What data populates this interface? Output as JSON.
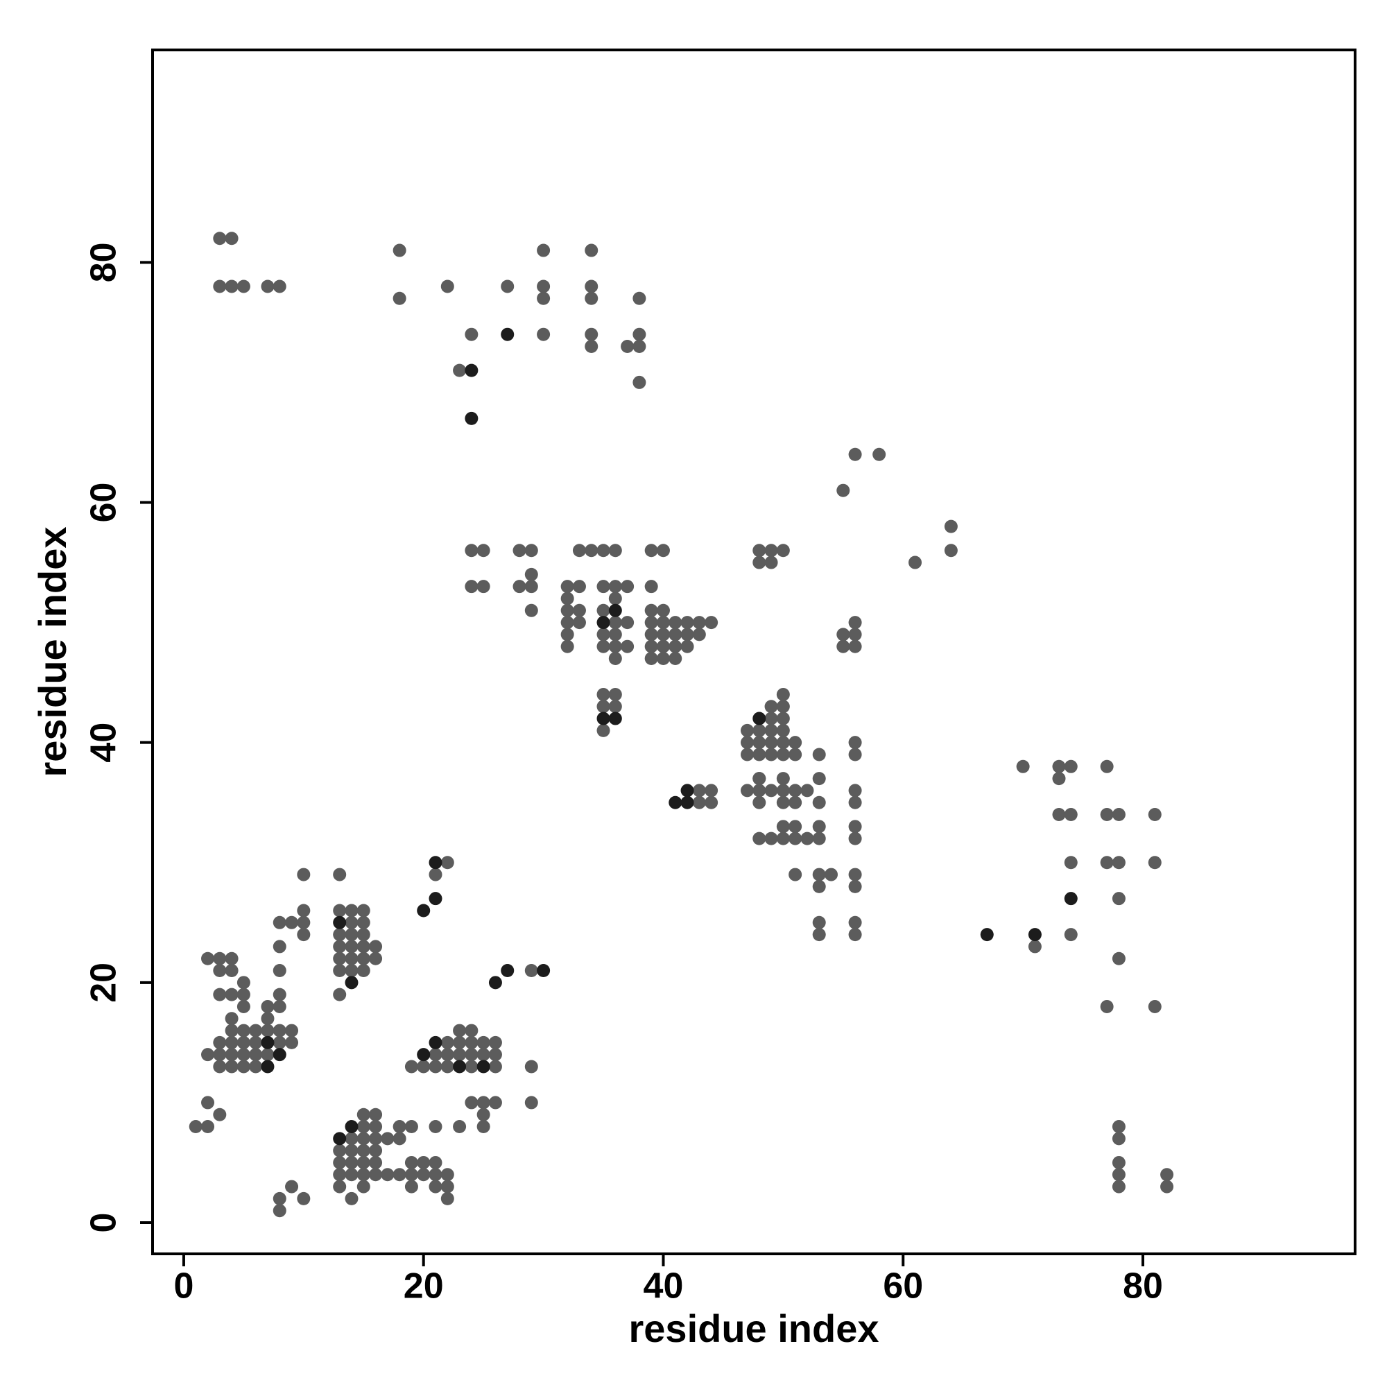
{
  "chart_data": {
    "type": "scatter",
    "xlabel": "residue index",
    "ylabel": "residue index",
    "xlim": [
      -2.6,
      97.7
    ],
    "ylim": [
      -2.6,
      97.7
    ],
    "xticks": [
      0,
      20,
      40,
      60,
      80
    ],
    "yticks": [
      0,
      20,
      40,
      60,
      80
    ],
    "grid": false,
    "series": [
      {
        "color": "#5c5c5c",
        "x": [
          3,
          4,
          3,
          4,
          5,
          7,
          8,
          18,
          18,
          22,
          30,
          30,
          30,
          30,
          34,
          34,
          34,
          34,
          34,
          27,
          24,
          23,
          37,
          38,
          38,
          38,
          38,
          55,
          56,
          58,
          61,
          64,
          64,
          24,
          25,
          28,
          29,
          33,
          34,
          35,
          36,
          39,
          40,
          48,
          49,
          50,
          48,
          49,
          29,
          24,
          25,
          28,
          29,
          32,
          33,
          35,
          36,
          37,
          39,
          32,
          36,
          29,
          32,
          33,
          35,
          39,
          40,
          32,
          33,
          36,
          37,
          39,
          40,
          41,
          42,
          43,
          44,
          56,
          32,
          35,
          36,
          39,
          40,
          41,
          42,
          43,
          55,
          56,
          32,
          35,
          36,
          37,
          39,
          40,
          41,
          42,
          55,
          56,
          36,
          39,
          40,
          41,
          35,
          36,
          35,
          36,
          35,
          47,
          47,
          47,
          48,
          48,
          48,
          48,
          49,
          49,
          49,
          49,
          49,
          50,
          50,
          50,
          50,
          50,
          50,
          51,
          51,
          47,
          48,
          49,
          50,
          51,
          52,
          56,
          43,
          44,
          48,
          50,
          51,
          53,
          43,
          44,
          56,
          48,
          50,
          53,
          53,
          56,
          56,
          48,
          49,
          50,
          51,
          52,
          53,
          56,
          50,
          51,
          53,
          56,
          51,
          53,
          54,
          56,
          53,
          56,
          53,
          56,
          53,
          56,
          70,
          71,
          73,
          73,
          74,
          73,
          74,
          74,
          74,
          77,
          77,
          78,
          77,
          78,
          78,
          78,
          77,
          81,
          81,
          81,
          78,
          78,
          78,
          78,
          78,
          82,
          82,
          10,
          13,
          21,
          22,
          10,
          13,
          14,
          15,
          8,
          9,
          10,
          14,
          15,
          10,
          13,
          14,
          15,
          8,
          13,
          14,
          15,
          16,
          2,
          3,
          4,
          13,
          14,
          15,
          16,
          3,
          4,
          8,
          13,
          14,
          15,
          29,
          5,
          3,
          4,
          5,
          8,
          13,
          5,
          7,
          8,
          4,
          7,
          4,
          5,
          6,
          7,
          8,
          9,
          23,
          24,
          3,
          4,
          5,
          6,
          8,
          9,
          22,
          23,
          24,
          25,
          26,
          2,
          3,
          4,
          5,
          6,
          7,
          21,
          22,
          23,
          24,
          25,
          26,
          3,
          4,
          5,
          6,
          19,
          20,
          21,
          22,
          24,
          26,
          29,
          2,
          24,
          25,
          26,
          29,
          3,
          15,
          16,
          25,
          1,
          2,
          15,
          16,
          18,
          19,
          21,
          23,
          25,
          14,
          15,
          16,
          17,
          18,
          13,
          14,
          15,
          16,
          13,
          14,
          15,
          16,
          19,
          20,
          21,
          13,
          14,
          15,
          16,
          17,
          18,
          19,
          20,
          21,
          22,
          9,
          13,
          15,
          19,
          21,
          22,
          8,
          10,
          14,
          22,
          8
        ],
        "values": [
          82,
          82,
          78,
          78,
          78,
          78,
          78,
          81,
          77,
          78,
          81,
          78,
          77,
          74,
          81,
          78,
          77,
          74,
          73,
          78,
          74,
          71,
          73,
          73,
          74,
          77,
          70,
          61,
          64,
          64,
          55,
          58,
          56,
          56,
          56,
          56,
          56,
          56,
          56,
          56,
          56,
          56,
          56,
          56,
          56,
          56,
          55,
          55,
          54,
          53,
          53,
          53,
          53,
          53,
          53,
          53,
          53,
          53,
          53,
          52,
          52,
          51,
          51,
          51,
          51,
          51,
          51,
          50,
          50,
          50,
          50,
          50,
          50,
          50,
          50,
          50,
          50,
          50,
          49,
          49,
          49,
          49,
          49,
          49,
          49,
          49,
          49,
          49,
          48,
          48,
          48,
          48,
          48,
          48,
          48,
          48,
          48,
          48,
          47,
          47,
          47,
          47,
          44,
          44,
          43,
          43,
          41,
          39,
          40,
          41,
          39,
          40,
          41,
          37,
          39,
          40,
          41,
          42,
          43,
          39,
          40,
          41,
          42,
          43,
          44,
          39,
          40,
          36,
          36,
          36,
          36,
          36,
          36,
          36,
          36,
          36,
          35,
          35,
          35,
          35,
          35,
          35,
          35,
          37,
          37,
          37,
          39,
          39,
          40,
          32,
          32,
          32,
          32,
          32,
          32,
          32,
          33,
          33,
          33,
          33,
          29,
          29,
          29,
          29,
          28,
          28,
          25,
          25,
          24,
          24,
          38,
          23,
          38,
          37,
          38,
          34,
          34,
          30,
          24,
          38,
          34,
          34,
          30,
          30,
          27,
          22,
          18,
          18,
          34,
          30,
          8,
          7,
          5,
          4,
          3,
          4,
          3,
          29,
          29,
          29,
          30,
          26,
          26,
          26,
          26,
          25,
          25,
          25,
          25,
          25,
          24,
          24,
          24,
          24,
          23,
          23,
          23,
          23,
          23,
          22,
          22,
          22,
          22,
          22,
          22,
          22,
          21,
          21,
          21,
          21,
          21,
          21,
          21,
          20,
          19,
          19,
          19,
          19,
          19,
          18,
          18,
          18,
          17,
          17,
          16,
          16,
          16,
          16,
          16,
          16,
          16,
          16,
          15,
          15,
          15,
          15,
          15,
          15,
          15,
          15,
          15,
          15,
          15,
          14,
          14,
          14,
          14,
          14,
          14,
          14,
          14,
          14,
          14,
          14,
          14,
          13,
          13,
          13,
          13,
          13,
          13,
          13,
          13,
          13,
          13,
          13,
          10,
          10,
          10,
          10,
          10,
          9,
          9,
          9,
          9,
          8,
          8,
          8,
          8,
          8,
          8,
          8,
          8,
          8,
          7,
          7,
          7,
          7,
          7,
          6,
          6,
          6,
          6,
          5,
          5,
          5,
          5,
          5,
          5,
          5,
          4,
          4,
          4,
          4,
          4,
          4,
          4,
          4,
          4,
          4,
          3,
          3,
          3,
          3,
          3,
          3,
          2,
          2,
          2,
          2,
          1
        ]
      },
      {
        "color": "#1c1c1c",
        "x": [
          27,
          24,
          24,
          21,
          21,
          20,
          27,
          30,
          26,
          14,
          13,
          13,
          14,
          7,
          8,
          7,
          21,
          20,
          25,
          23,
          36,
          35,
          36,
          35,
          41,
          42,
          42,
          48,
          67,
          71,
          74
        ],
        "values": [
          74,
          71,
          67,
          30,
          27,
          26,
          21,
          21,
          20,
          20,
          25,
          7,
          8,
          13,
          14,
          15,
          15,
          14,
          13,
          13,
          42,
          42,
          51,
          50,
          35,
          36,
          35,
          42,
          24,
          24,
          27
        ]
      }
    ]
  }
}
